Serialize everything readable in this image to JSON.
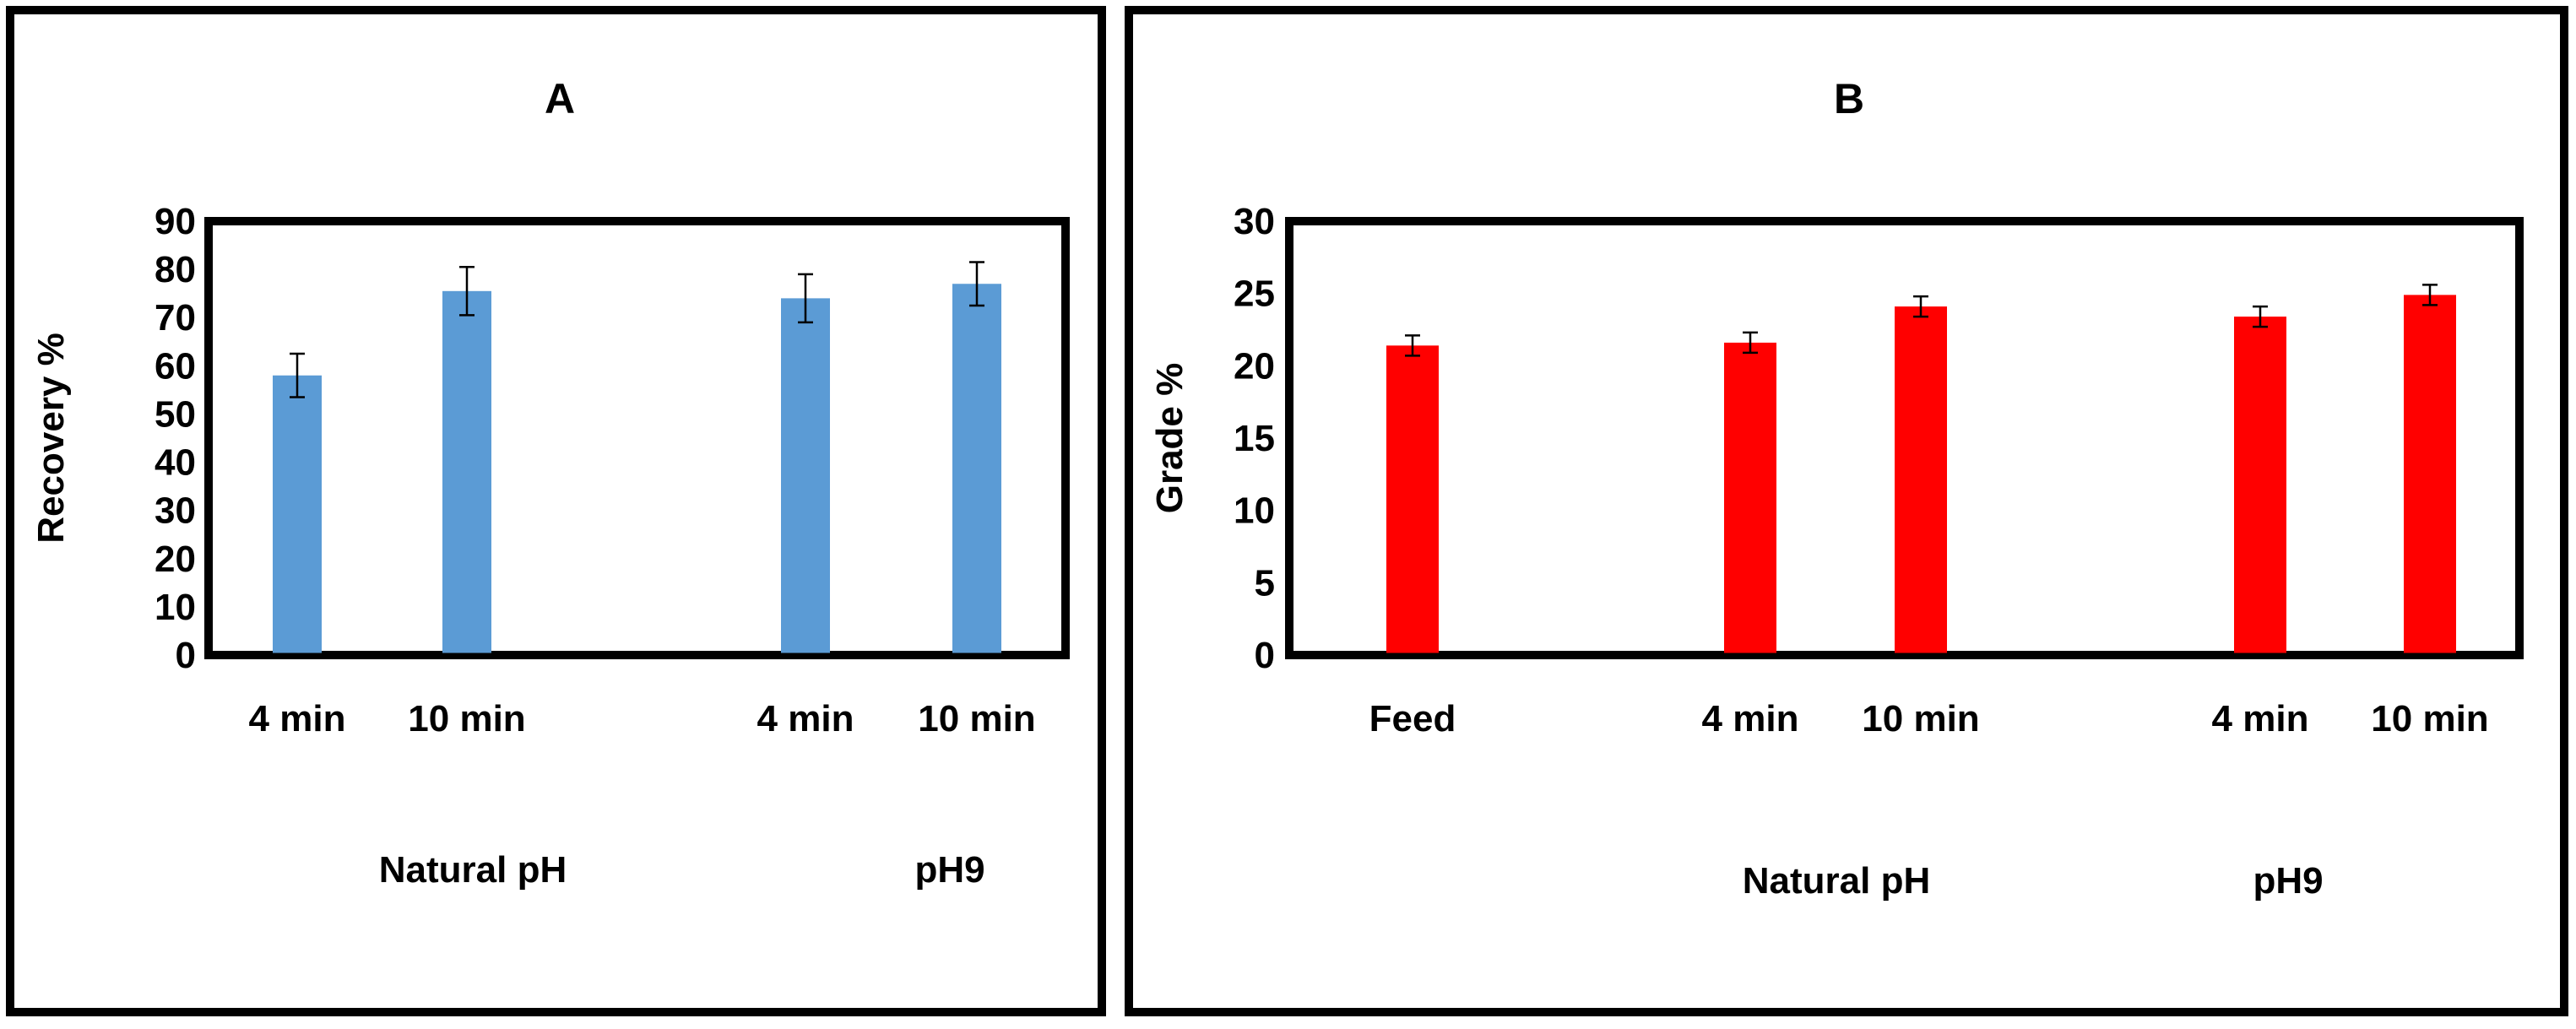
{
  "chart_data": [
    {
      "type": "bar",
      "panel_label": "A",
      "ylabel": "Recovery %",
      "xlabel": "",
      "ylim": [
        0,
        90
      ],
      "yticks": [
        0,
        10,
        20,
        30,
        40,
        50,
        60,
        70,
        80,
        90
      ],
      "grid": false,
      "legend": "none",
      "bar_color": "#5B9BD5",
      "groups": [
        "Natural pH",
        "pH9"
      ],
      "categories": [
        {
          "label": "4 min",
          "group": "Natural pH"
        },
        {
          "label": "10 min",
          "group": "Natural pH"
        },
        {
          "label": "4 min",
          "group": "pH9"
        },
        {
          "label": "10 min",
          "group": "pH9"
        }
      ],
      "values": [
        58,
        75.5,
        74,
        77
      ],
      "errors": [
        4.5,
        5,
        5,
        4.5
      ]
    },
    {
      "type": "bar",
      "panel_label": "B",
      "ylabel": "Grade %",
      "xlabel": "",
      "ylim": [
        0,
        30
      ],
      "yticks": [
        0,
        5,
        10,
        15,
        20,
        25,
        30
      ],
      "grid": false,
      "legend": "none",
      "bar_color": "#FF0000",
      "groups": [
        "Natural pH",
        "pH9"
      ],
      "categories": [
        {
          "label": "Feed",
          "group": ""
        },
        {
          "label": "4 min",
          "group": "Natural pH"
        },
        {
          "label": "10 min",
          "group": "Natural pH"
        },
        {
          "label": "4 min",
          "group": "pH9"
        },
        {
          "label": "10 min",
          "group": "pH9"
        }
      ],
      "values": [
        21.4,
        21.6,
        24.1,
        23.4,
        24.9
      ],
      "errors": [
        0.7,
        0.7,
        0.7,
        0.7,
        0.7
      ]
    }
  ]
}
